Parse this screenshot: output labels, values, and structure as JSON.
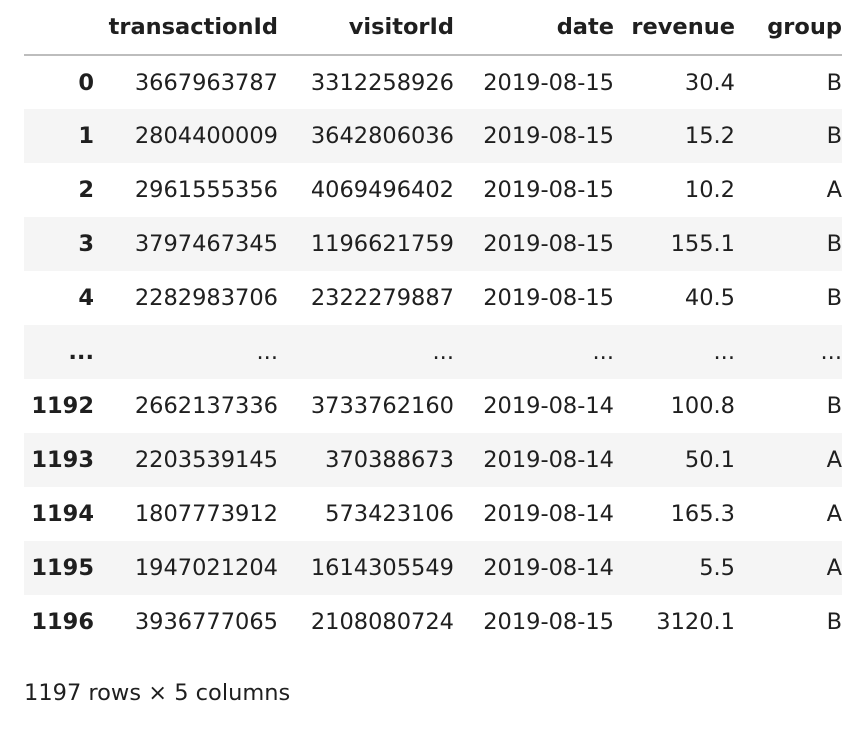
{
  "table": {
    "columns": [
      "transactionId",
      "visitorId",
      "date",
      "revenue",
      "group"
    ],
    "rows": [
      {
        "index": "0",
        "cells": [
          "3667963787",
          "3312258926",
          "2019-08-15",
          "30.4",
          "B"
        ]
      },
      {
        "index": "1",
        "cells": [
          "2804400009",
          "3642806036",
          "2019-08-15",
          "15.2",
          "B"
        ]
      },
      {
        "index": "2",
        "cells": [
          "2961555356",
          "4069496402",
          "2019-08-15",
          "10.2",
          "A"
        ]
      },
      {
        "index": "3",
        "cells": [
          "3797467345",
          "1196621759",
          "2019-08-15",
          "155.1",
          "B"
        ]
      },
      {
        "index": "4",
        "cells": [
          "2282983706",
          "2322279887",
          "2019-08-15",
          "40.5",
          "B"
        ]
      },
      {
        "index": "...",
        "cells": [
          "...",
          "...",
          "...",
          "...",
          "..."
        ]
      },
      {
        "index": "1192",
        "cells": [
          "2662137336",
          "3733762160",
          "2019-08-14",
          "100.8",
          "B"
        ]
      },
      {
        "index": "1193",
        "cells": [
          "2203539145",
          "370388673",
          "2019-08-14",
          "50.1",
          "A"
        ]
      },
      {
        "index": "1194",
        "cells": [
          "1807773912",
          "573423106",
          "2019-08-14",
          "165.3",
          "A"
        ]
      },
      {
        "index": "1195",
        "cells": [
          "1947021204",
          "1614305549",
          "2019-08-14",
          "5.5",
          "A"
        ]
      },
      {
        "index": "1196",
        "cells": [
          "3936777065",
          "2108080724",
          "2019-08-15",
          "3120.1",
          "B"
        ]
      }
    ]
  },
  "footer": {
    "shape_text": "1197 rows × 5 columns"
  }
}
